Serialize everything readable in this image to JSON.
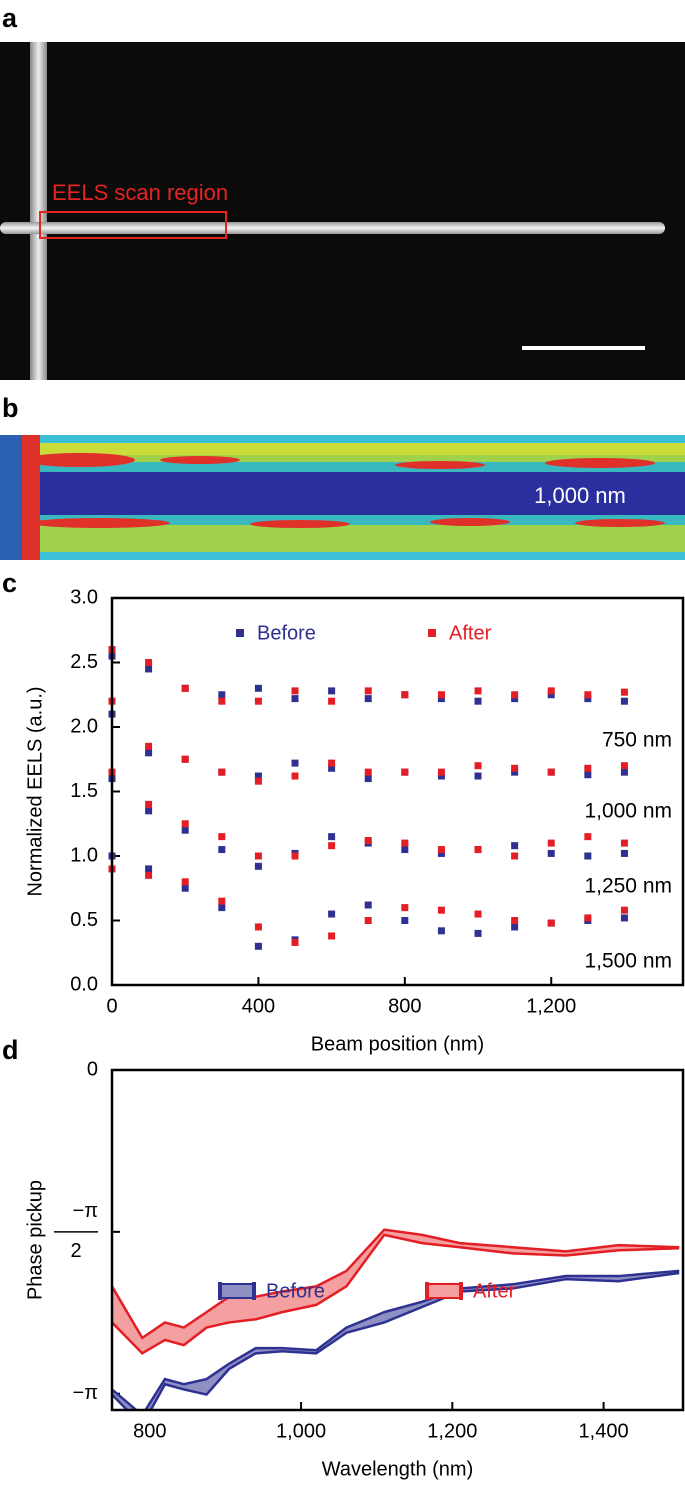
{
  "panel_labels": [
    "a",
    "b",
    "c",
    "d"
  ],
  "image_a": {
    "annotation": "EELS scan region"
  },
  "image_b": {
    "annotation": "1,000 nm"
  },
  "chart_data": [
    {
      "type": "scatter",
      "xlabel": "Beam position (nm)",
      "ylabel": "Normalized EELS (a.u.)",
      "xlim": [
        0,
        1560
      ],
      "ylim": [
        0,
        3
      ],
      "xticks": [
        0,
        400,
        800,
        {
          "value": 1200,
          "label": "1,200"
        }
      ],
      "yticks": [
        {
          "value": 0,
          "label": "0.0"
        },
        0.5,
        {
          "value": 1,
          "label": "1.0"
        },
        1.5,
        {
          "value": 2,
          "label": "2.0"
        },
        2.5,
        {
          "value": 3,
          "label": "3.0"
        }
      ],
      "x": [
        0,
        100,
        200,
        300,
        400,
        500,
        600,
        700,
        800,
        900,
        1000,
        1100,
        1200,
        1300,
        1400
      ],
      "annotations": [
        "750 nm",
        "1,000 nm",
        "1,250 nm",
        "1,500 nm"
      ],
      "series": [
        {
          "name": "Before",
          "color": "#2e3192",
          "curves": [
            [
              2.55,
              2.45,
              2.3,
              2.25,
              2.3,
              2.22,
              2.28,
              2.22,
              2.25,
              2.22,
              2.2,
              2.22,
              2.25,
              2.22,
              2.2
            ],
            [
              2.1,
              1.8,
              1.75,
              1.65,
              1.62,
              1.72,
              1.68,
              1.6,
              1.65,
              1.62,
              1.62,
              1.65,
              1.65,
              1.63,
              1.65
            ],
            [
              1.6,
              1.35,
              1.2,
              1.05,
              0.92,
              1.02,
              1.15,
              1.1,
              1.05,
              1.02,
              1.05,
              1.08,
              1.02,
              1.0,
              1.02
            ],
            [
              1.0,
              0.9,
              0.75,
              0.6,
              0.3,
              0.35,
              0.55,
              0.62,
              0.5,
              0.42,
              0.4,
              0.45,
              0.48,
              0.5,
              0.52
            ]
          ]
        },
        {
          "name": "After",
          "color": "#e31e24",
          "curves": [
            [
              2.6,
              2.5,
              2.3,
              2.2,
              2.2,
              2.28,
              2.2,
              2.28,
              2.25,
              2.25,
              2.28,
              2.25,
              2.28,
              2.25,
              2.27
            ],
            [
              2.2,
              1.85,
              1.75,
              1.65,
              1.58,
              1.62,
              1.72,
              1.65,
              1.65,
              1.65,
              1.7,
              1.68,
              1.65,
              1.68,
              1.7
            ],
            [
              1.65,
              1.4,
              1.25,
              1.15,
              1.0,
              1.0,
              1.08,
              1.12,
              1.1,
              1.05,
              1.05,
              1.0,
              1.1,
              1.15,
              1.1
            ],
            [
              0.9,
              0.85,
              0.8,
              0.65,
              0.45,
              0.33,
              0.38,
              0.5,
              0.6,
              0.58,
              0.55,
              0.5,
              0.48,
              0.52,
              0.58
            ]
          ]
        }
      ]
    },
    {
      "type": "band",
      "xlabel": "Wavelength (nm)",
      "ylabel": "Phase pickup",
      "xlim": [
        750,
        1505
      ],
      "ylim": [
        -3.3,
        0
      ],
      "xticks": [
        800,
        {
          "value": 1000,
          "label": "1,000"
        },
        {
          "value": 1200,
          "label": "1,200"
        },
        {
          "value": 1400,
          "label": "1,400"
        }
      ],
      "yticks": [
        0,
        {
          "value": -1.5708,
          "label": [
            "−π",
            "2"
          ]
        },
        {
          "value": -3.1416,
          "label": "−π"
        }
      ],
      "x": [
        750,
        790,
        820,
        845,
        875,
        905,
        940,
        975,
        1020,
        1060,
        1110,
        1160,
        1210,
        1280,
        1350,
        1420,
        1500
      ],
      "series": [
        {
          "name": "Before",
          "color": "#2e3192",
          "fill": "#8e90c4",
          "upper": [
            -3.1,
            -3.35,
            -3.0,
            -3.05,
            -3.0,
            -2.85,
            -2.7,
            -2.7,
            -2.72,
            -2.5,
            -2.35,
            -2.25,
            -2.12,
            -2.08,
            -2.0,
            -2.0,
            -1.95
          ],
          "lower": [
            -3.15,
            -3.45,
            -3.05,
            -3.1,
            -3.15,
            -2.9,
            -2.75,
            -2.73,
            -2.75,
            -2.55,
            -2.45,
            -2.3,
            -2.15,
            -2.12,
            -2.03,
            -2.05,
            -1.97
          ]
        },
        {
          "name": "After",
          "color": "#e31e24",
          "fill": "#f4a0a0",
          "upper": [
            -2.1,
            -2.6,
            -2.45,
            -2.5,
            -2.35,
            -2.2,
            -2.2,
            -2.15,
            -2.1,
            -1.95,
            -1.55,
            -1.6,
            -1.68,
            -1.72,
            -1.76,
            -1.7,
            -1.72
          ],
          "lower": [
            -2.45,
            -2.75,
            -2.62,
            -2.67,
            -2.5,
            -2.45,
            -2.42,
            -2.35,
            -2.28,
            -2.1,
            -1.6,
            -1.68,
            -1.72,
            -1.78,
            -1.8,
            -1.75,
            -1.73
          ]
        }
      ]
    }
  ]
}
